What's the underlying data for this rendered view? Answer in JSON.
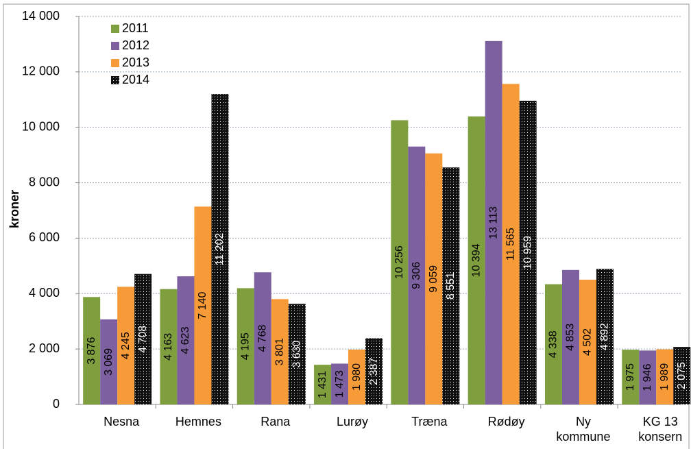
{
  "chart_data": {
    "type": "bar",
    "y_label": "kroner",
    "categories": [
      "Nesna",
      "Hemnes",
      "Rana",
      "Lurøy",
      "Træna",
      "Rødøy",
      "Ny kommune",
      "KG 13 konsern"
    ],
    "series": [
      {
        "name": "2011",
        "color": "#7f9f3f",
        "values": [
          3876,
          4163,
          4195,
          1431,
          10256,
          10394,
          4338,
          1975
        ],
        "value_labels": [
          "3 876",
          "4 163",
          "4 195",
          "1 431",
          "10 256",
          "10 394",
          "4 338",
          "1 975"
        ]
      },
      {
        "name": "2012",
        "color": "#7d60a0",
        "values": [
          3069,
          4623,
          4768,
          1473,
          9306,
          13113,
          4853,
          1946
        ],
        "value_labels": [
          "3 069",
          "4 623",
          "4 768",
          "1 473",
          "9 306",
          "13 113",
          "4 853",
          "1 946"
        ]
      },
      {
        "name": "2013",
        "color": "#f79a38",
        "values": [
          4245,
          7140,
          3801,
          1980,
          9059,
          11565,
          4502,
          1989
        ],
        "value_labels": [
          "4 245",
          "7 140",
          "3 801",
          "1 980",
          "9 059",
          "11 565",
          "4 502",
          "1 989"
        ]
      },
      {
        "name": "2014",
        "color": "#111111",
        "values": [
          4708,
          11202,
          3630,
          2387,
          8551,
          10959,
          4892,
          2075
        ],
        "value_labels": [
          "4 708",
          "11 202",
          "3 630",
          "2 387",
          "8 551",
          "10 959",
          "4 892",
          "2 075"
        ]
      }
    ],
    "ylim": [
      0,
      14000
    ],
    "yticks": [
      0,
      {
        "value": 2000,
        "label": "2 000"
      },
      {
        "value": 4000,
        "label": "4 000"
      },
      {
        "value": 6000,
        "label": "6 000"
      },
      {
        "value": 8000,
        "label": "8 000"
      },
      {
        "value": 10000,
        "label": "10 000"
      },
      {
        "value": 12000,
        "label": "12 000"
      },
      {
        "value": 14000,
        "label": "14 000"
      }
    ],
    "grid": true,
    "legend": "top-left"
  }
}
